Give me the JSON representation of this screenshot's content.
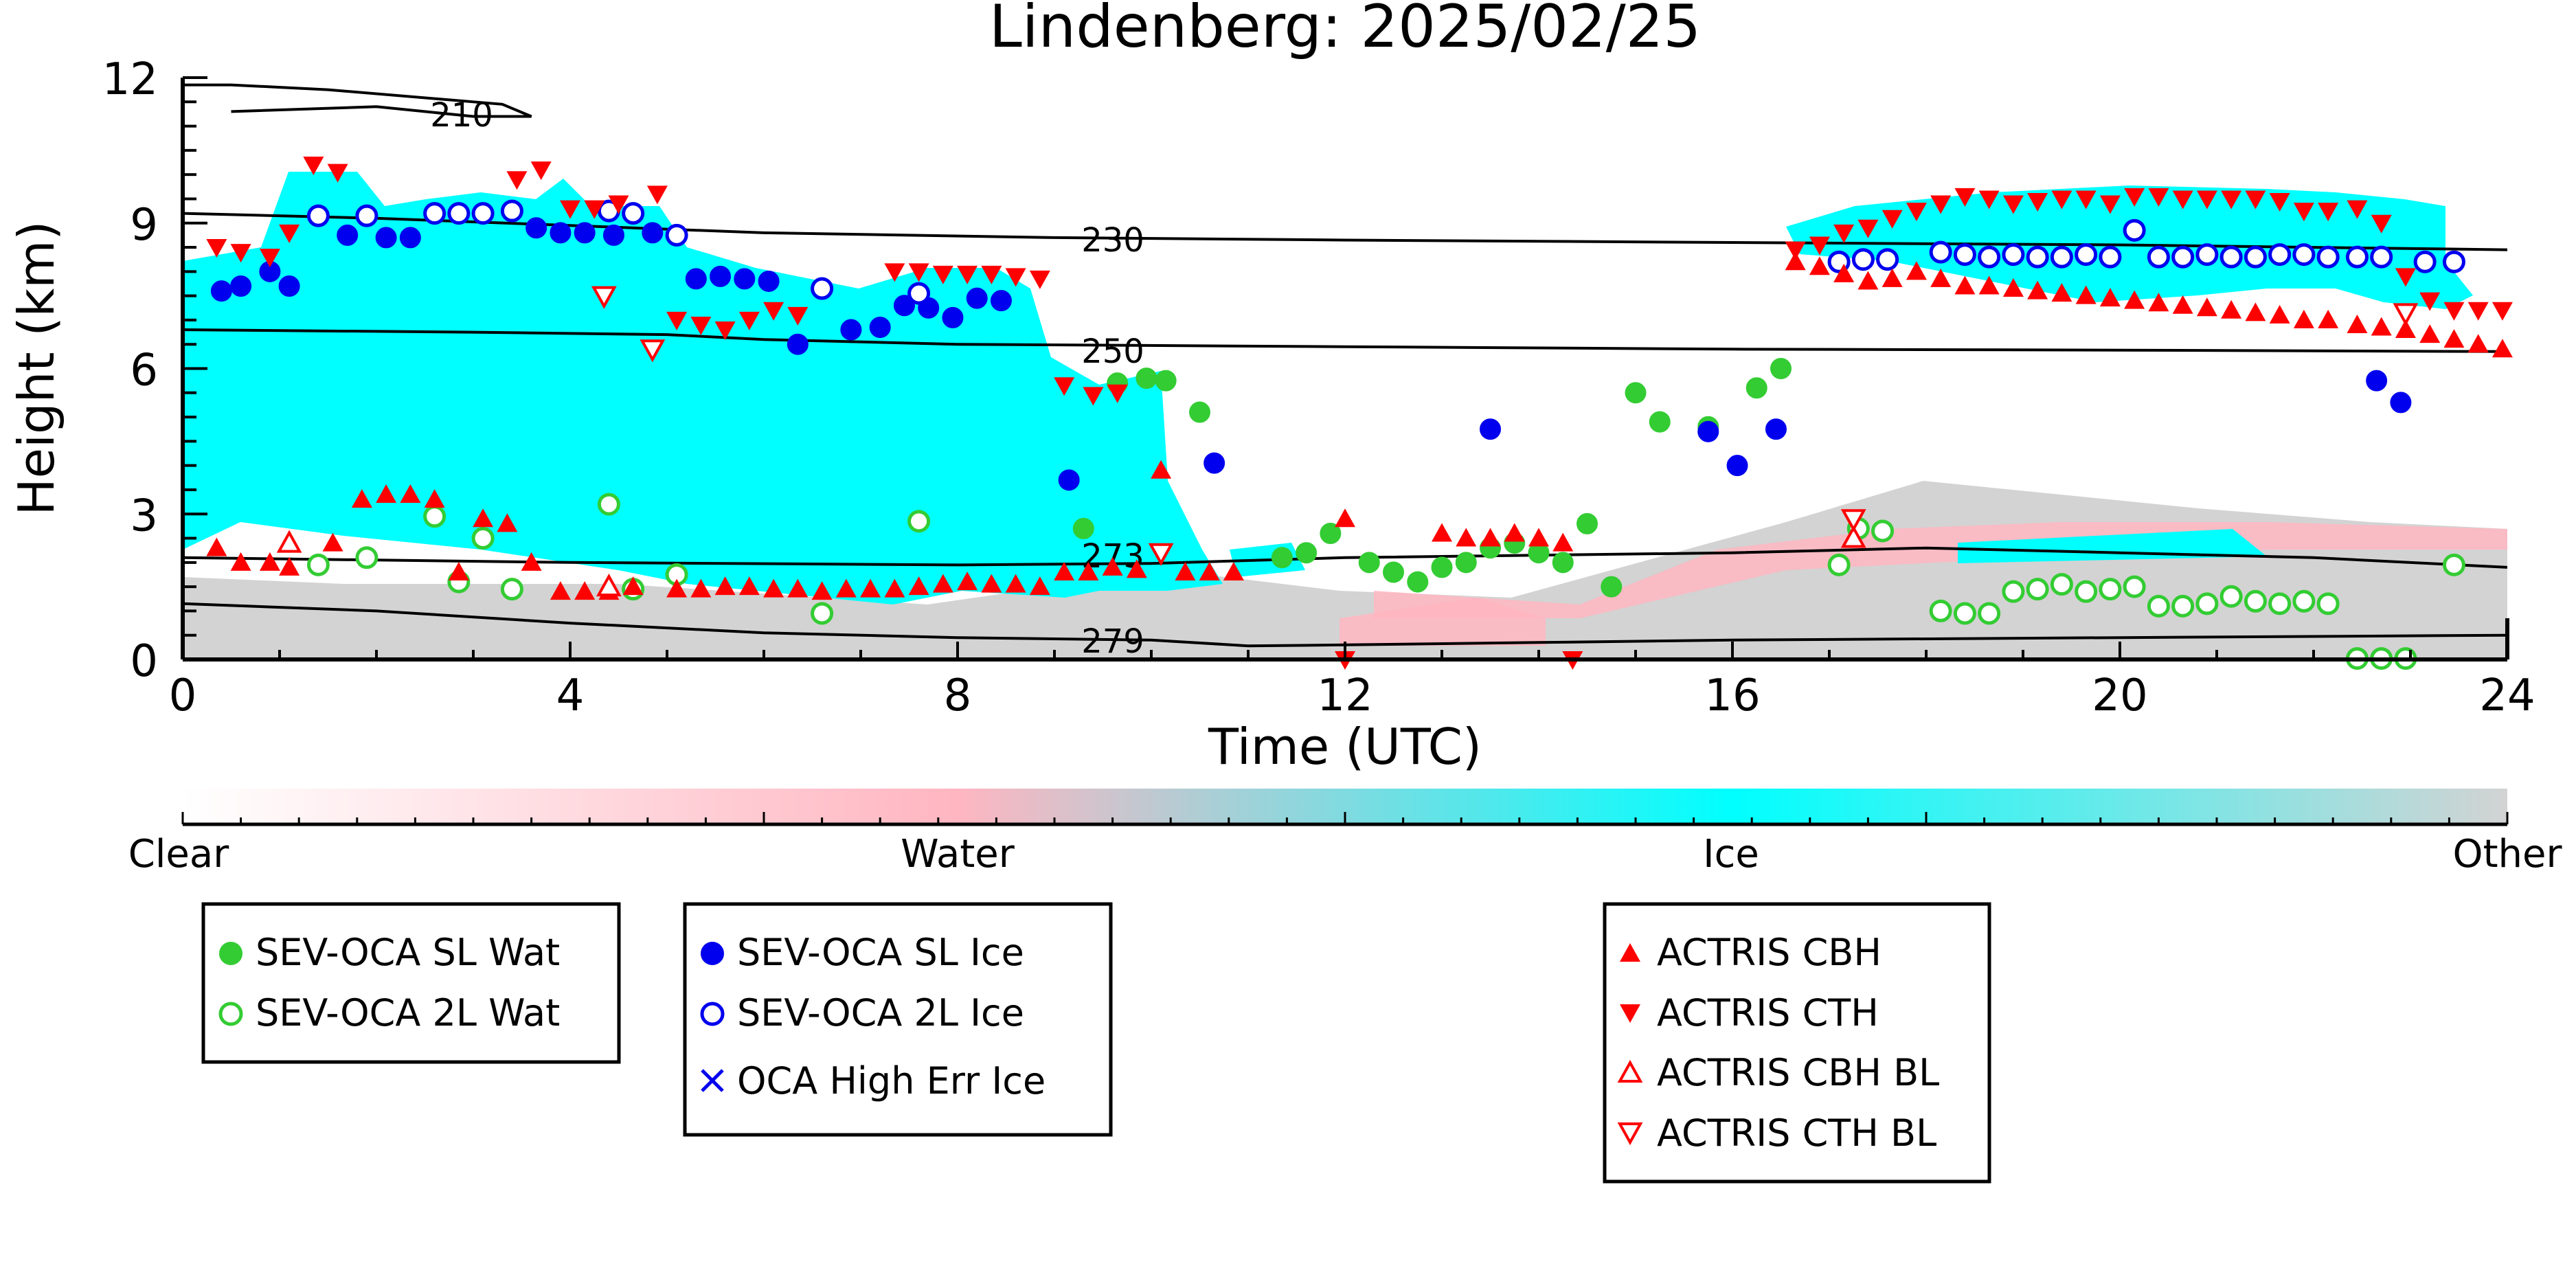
{
  "chart_data": {
    "type": "scatter",
    "title": "Lindenberg: 2025/02/25",
    "xlabel": "Time (UTC)",
    "ylabel": "Height (km)",
    "xlim": [
      0,
      24
    ],
    "ylim": [
      0,
      12
    ],
    "xticks": [
      "0",
      "4",
      "8",
      "12",
      "16",
      "20",
      "24"
    ],
    "yticks": [
      "0",
      "3",
      "6",
      "9",
      "12"
    ],
    "grid": false,
    "colorbar": {
      "labels": [
        "Clear",
        "Water",
        "Ice",
        "Other"
      ],
      "colors": [
        "#ffffff",
        "#ffb6c1",
        "#00ffff",
        "#d3d3d3"
      ]
    },
    "contours": [
      {
        "label": "210",
        "points": [
          [
            0.5,
            11.3
          ],
          [
            2,
            11.4
          ],
          [
            3,
            11.2
          ],
          [
            3.6,
            11.2
          ],
          [
            3.3,
            11.45
          ],
          [
            1.5,
            11.75
          ],
          [
            0.5,
            11.85
          ],
          [
            0,
            11.85
          ]
        ]
      },
      {
        "label": "230",
        "points": [
          [
            0,
            9.2
          ],
          [
            2,
            9.1
          ],
          [
            4,
            8.95
          ],
          [
            6,
            8.8
          ],
          [
            9,
            8.7
          ],
          [
            12,
            8.65
          ],
          [
            16,
            8.6
          ],
          [
            20,
            8.55
          ],
          [
            24,
            8.45
          ]
        ]
      },
      {
        "label": "250",
        "points": [
          [
            0,
            6.8
          ],
          [
            3,
            6.75
          ],
          [
            5,
            6.7
          ],
          [
            6,
            6.6
          ],
          [
            8,
            6.5
          ],
          [
            12,
            6.45
          ],
          [
            16,
            6.4
          ],
          [
            20,
            6.38
          ],
          [
            24,
            6.35
          ]
        ]
      },
      {
        "label": "273",
        "points": [
          [
            0,
            2.1
          ],
          [
            2,
            2.05
          ],
          [
            4,
            2.0
          ],
          [
            8,
            1.95
          ],
          [
            10,
            1.98
          ],
          [
            12,
            2.1
          ],
          [
            16,
            2.2
          ],
          [
            18,
            2.3
          ],
          [
            20,
            2.2
          ],
          [
            22,
            2.1
          ],
          [
            24,
            1.9
          ]
        ]
      },
      {
        "label": "279",
        "points": [
          [
            0,
            1.15
          ],
          [
            2,
            1.0
          ],
          [
            4,
            0.75
          ],
          [
            6,
            0.55
          ],
          [
            8,
            0.45
          ],
          [
            10,
            0.4
          ],
          [
            11,
            0.28
          ],
          [
            12,
            0.3
          ],
          [
            14,
            0.35
          ],
          [
            16,
            0.4
          ],
          [
            20,
            0.45
          ],
          [
            24,
            0.5
          ]
        ]
      }
    ],
    "series": [
      {
        "name": "SEV-OCA SL Wat",
        "marker": "filled-circle",
        "color": "#33cc33",
        "x": [
          9.3,
          9.65,
          9.95,
          10.15,
          10.5,
          11.35,
          11.6,
          11.85,
          12.25,
          12.5,
          12.75,
          13.0,
          13.25,
          13.5,
          13.75,
          14.0,
          14.25,
          14.5,
          14.75,
          15.0,
          15.25,
          15.75,
          16.25,
          16.5
        ],
        "y": [
          2.7,
          5.7,
          5.8,
          5.75,
          5.1,
          2.1,
          2.2,
          2.6,
          2.0,
          1.8,
          1.6,
          1.9,
          2.0,
          2.3,
          2.4,
          2.2,
          2.0,
          2.8,
          1.5,
          5.5,
          4.9,
          4.8,
          5.6,
          6.0
        ]
      },
      {
        "name": "SEV-OCA 2L Wat",
        "marker": "open-circle",
        "color": "#33cc33",
        "x": [
          1.4,
          1.9,
          2.6,
          2.85,
          3.1,
          3.4,
          4.4,
          4.65,
          5.1,
          6.6,
          7.6,
          17.1,
          17.3,
          17.55,
          18.15,
          18.4,
          18.65,
          18.9,
          19.15,
          19.4,
          19.65,
          19.9,
          20.15,
          20.4,
          20.65,
          20.9,
          21.15,
          21.4,
          21.65,
          21.9,
          22.15,
          22.45,
          22.7,
          22.95,
          23.45
        ],
        "y": [
          1.95,
          2.1,
          2.95,
          1.6,
          2.5,
          1.45,
          3.2,
          1.45,
          1.75,
          0.95,
          2.85,
          1.95,
          2.7,
          2.65,
          1.0,
          0.95,
          0.95,
          1.4,
          1.45,
          1.55,
          1.4,
          1.45,
          1.5,
          1.1,
          1.1,
          1.15,
          1.3,
          1.2,
          1.15,
          1.2,
          1.15,
          0.02,
          0.02,
          0.02,
          1.95
        ]
      },
      {
        "name": "SEV-OCA SL Ice",
        "marker": "filled-circle",
        "color": "#0000ee",
        "x": [
          0.4,
          0.6,
          0.9,
          1.1,
          1.7,
          2.1,
          2.35,
          3.65,
          3.9,
          4.15,
          4.45,
          4.85,
          5.3,
          5.55,
          5.8,
          6.05,
          6.35,
          6.9,
          7.2,
          7.45,
          7.7,
          7.95,
          8.2,
          8.45,
          9.15,
          10.65,
          13.5,
          15.75,
          16.05,
          16.45,
          22.65,
          22.9
        ],
        "y": [
          7.6,
          7.7,
          8.0,
          7.7,
          8.75,
          8.7,
          8.7,
          8.9,
          8.8,
          8.8,
          8.75,
          8.8,
          7.85,
          7.9,
          7.85,
          7.8,
          6.5,
          6.8,
          6.85,
          7.3,
          7.25,
          7.05,
          7.45,
          7.4,
          3.7,
          4.05,
          4.75,
          4.7,
          4.0,
          4.75,
          5.75,
          5.3
        ]
      },
      {
        "name": "SEV-OCA 2L Ice",
        "marker": "open-circle",
        "color": "#0000ee",
        "x": [
          1.4,
          1.9,
          2.6,
          2.85,
          3.1,
          3.4,
          4.4,
          4.65,
          5.1,
          6.6,
          7.6,
          17.1,
          17.35,
          17.6,
          18.15,
          18.4,
          18.65,
          18.9,
          19.15,
          19.4,
          19.65,
          19.9,
          20.15,
          20.4,
          20.65,
          20.9,
          21.15,
          21.4,
          21.65,
          21.9,
          22.15,
          22.45,
          22.7,
          23.15,
          23.45
        ],
        "y": [
          9.15,
          9.15,
          9.2,
          9.2,
          9.2,
          9.25,
          9.25,
          9.2,
          8.75,
          7.65,
          7.55,
          8.2,
          8.25,
          8.25,
          8.4,
          8.35,
          8.3,
          8.35,
          8.3,
          8.3,
          8.35,
          8.3,
          8.85,
          8.3,
          8.3,
          8.35,
          8.3,
          8.3,
          8.35,
          8.35,
          8.3,
          8.3,
          8.3,
          8.2,
          8.2
        ]
      },
      {
        "name": "OCA High Err Ice",
        "marker": "x",
        "color": "#0000ee",
        "x": [],
        "y": []
      },
      {
        "name": "ACTRIS CBH",
        "marker": "triangle-up",
        "color": "#ff0000",
        "x": [
          0.35,
          0.6,
          0.9,
          1.1,
          1.55,
          1.85,
          2.1,
          2.35,
          2.6,
          2.85,
          3.1,
          3.35,
          3.6,
          3.9,
          4.15,
          4.4,
          4.65,
          5.1,
          5.35,
          5.6,
          5.85,
          6.1,
          6.35,
          6.6,
          6.85,
          7.1,
          7.35,
          7.6,
          7.85,
          8.1,
          8.35,
          8.6,
          8.85,
          9.1,
          9.35,
          9.6,
          9.85,
          10.1,
          10.35,
          10.6,
          10.85,
          12.0,
          13.0,
          13.25,
          13.5,
          13.75,
          14.0,
          14.25,
          16.65,
          16.9,
          17.15,
          17.4,
          17.65,
          17.9,
          18.15,
          18.4,
          18.65,
          18.9,
          19.15,
          19.4,
          19.65,
          19.9,
          20.15,
          20.4,
          20.65,
          20.9,
          21.15,
          21.4,
          21.65,
          21.9,
          22.15,
          22.45,
          22.7,
          22.95,
          23.2,
          23.45,
          23.7,
          23.95
        ],
        "y": [
          2.3,
          2.0,
          2.0,
          1.9,
          2.4,
          3.3,
          3.4,
          3.4,
          3.3,
          1.8,
          2.9,
          2.8,
          2.0,
          1.4,
          1.4,
          1.4,
          1.5,
          1.45,
          1.45,
          1.5,
          1.5,
          1.45,
          1.45,
          1.4,
          1.45,
          1.45,
          1.45,
          1.5,
          1.55,
          1.6,
          1.55,
          1.55,
          1.5,
          1.8,
          1.8,
          1.9,
          1.85,
          3.9,
          1.8,
          1.8,
          1.8,
          2.9,
          2.6,
          2.5,
          2.5,
          2.6,
          2.5,
          2.4,
          8.2,
          8.1,
          7.95,
          7.8,
          7.85,
          8.0,
          7.85,
          7.7,
          7.7,
          7.65,
          7.6,
          7.55,
          7.5,
          7.45,
          7.4,
          7.35,
          7.3,
          7.25,
          7.2,
          7.15,
          7.1,
          7.0,
          7.0,
          6.9,
          6.85,
          6.8,
          6.7,
          6.6,
          6.5,
          6.4
        ]
      },
      {
        "name": "ACTRIS CTH",
        "marker": "triangle-down",
        "color": "#ff0000",
        "x": [
          0.35,
          0.6,
          0.9,
          1.1,
          1.35,
          1.6,
          3.45,
          3.7,
          4.0,
          4.25,
          4.5,
          4.9,
          5.1,
          5.35,
          5.6,
          5.85,
          6.1,
          6.35,
          7.35,
          7.6,
          7.85,
          8.1,
          8.35,
          8.6,
          8.85,
          9.1,
          9.4,
          9.65,
          12.0,
          14.35,
          16.65,
          16.9,
          17.15,
          17.4,
          17.65,
          17.9,
          18.15,
          18.4,
          18.65,
          18.9,
          19.15,
          19.4,
          19.65,
          19.9,
          20.15,
          20.4,
          20.65,
          20.9,
          21.15,
          21.4,
          21.65,
          21.9,
          22.15,
          22.45,
          22.7,
          22.95,
          23.2,
          23.45,
          23.7,
          23.95
        ],
        "y": [
          8.5,
          8.4,
          8.3,
          8.8,
          10.2,
          10.05,
          9.9,
          10.1,
          9.3,
          9.3,
          9.4,
          9.6,
          7.0,
          6.9,
          6.8,
          7.0,
          7.2,
          7.1,
          8.0,
          8.0,
          7.95,
          7.95,
          7.95,
          7.9,
          7.85,
          5.65,
          5.45,
          5.5,
          0.0,
          0.0,
          8.45,
          8.55,
          8.8,
          8.9,
          9.1,
          9.25,
          9.4,
          9.55,
          9.5,
          9.4,
          9.45,
          9.5,
          9.5,
          9.4,
          9.55,
          9.55,
          9.5,
          9.5,
          9.5,
          9.5,
          9.45,
          9.25,
          9.25,
          9.3,
          9.0,
          7.9,
          7.4,
          7.2,
          7.2,
          7.2
        ]
      },
      {
        "name": "ACTRIS CBH BL",
        "marker": "open-triangle-up",
        "color": "#ff0000",
        "x": [
          1.1,
          4.4,
          17.25
        ],
        "y": [
          2.4,
          1.5,
          2.5
        ]
      },
      {
        "name": "ACTRIS CTH BL",
        "marker": "open-triangle-down",
        "color": "#ff0000",
        "x": [
          4.35,
          4.85,
          10.1,
          17.25,
          22.95
        ],
        "y": [
          7.5,
          6.4,
          2.2,
          2.9,
          7.15
        ]
      }
    ]
  }
}
